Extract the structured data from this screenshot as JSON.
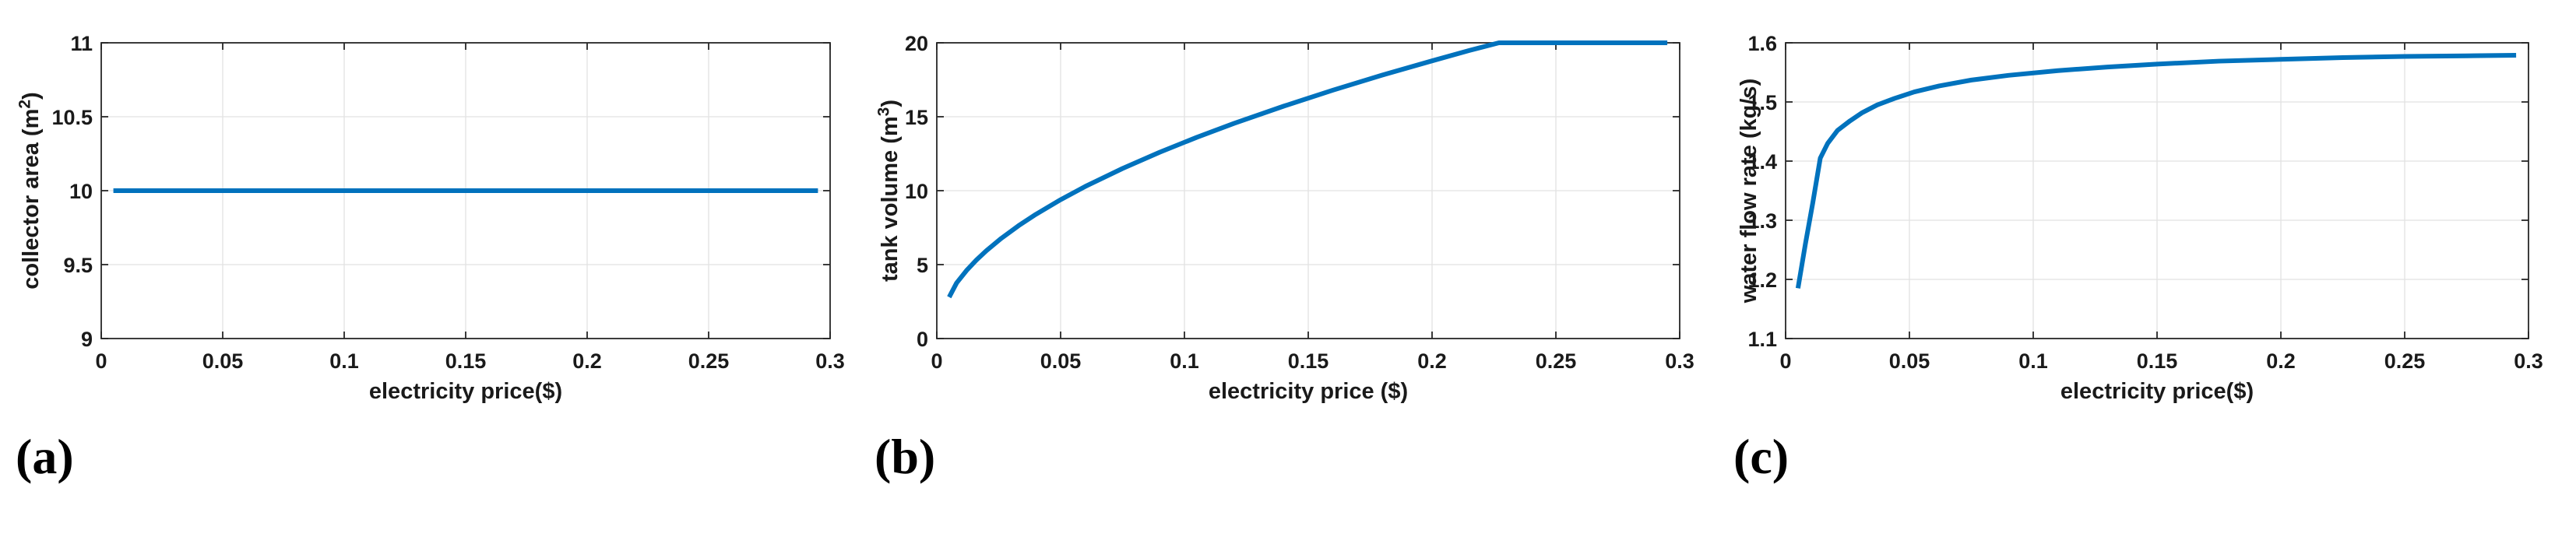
{
  "figure": {
    "background": "#ffffff",
    "line_color": "#0072BD",
    "grid_color": "#e2e2e2",
    "axis_color": "#262626",
    "text_color": "#1a1a1a"
  },
  "chart_data": [
    {
      "type": "line",
      "panel_label": "(a)",
      "xlabel": "electricity price($)",
      "ylabel": "collector area (m²)",
      "ylabel_prefix": "collector area (m",
      "ylabel_sup": "2",
      "ylabel_suffix": ")",
      "xlim": [
        0,
        0.3
      ],
      "ylim": [
        9,
        11
      ],
      "xticks": [
        0,
        0.05,
        0.1,
        0.15,
        0.2,
        0.25,
        0.3
      ],
      "xtick_labels": [
        "0",
        "0.05",
        "0.1",
        "0.15",
        "0.2",
        "0.25",
        "0.3"
      ],
      "yticks": [
        9,
        9.5,
        10,
        10.5,
        11
      ],
      "ytick_labels": [
        "9",
        "9.5",
        "10",
        "10.5",
        "11"
      ],
      "grid": true,
      "legend": null,
      "series": [
        {
          "name": "collector area",
          "x": [
            0.005,
            0.295
          ],
          "y": [
            10,
            10
          ]
        }
      ]
    },
    {
      "type": "line",
      "panel_label": "(b)",
      "xlabel": "electricity price ($)",
      "ylabel": "tank volume (m³)",
      "ylabel_prefix": "tank volume (m",
      "ylabel_sup": "3",
      "ylabel_suffix": ")",
      "xlim": [
        0,
        0.3
      ],
      "ylim": [
        0,
        20
      ],
      "xticks": [
        0,
        0.05,
        0.1,
        0.15,
        0.2,
        0.25,
        0.3
      ],
      "xtick_labels": [
        "0",
        "0.05",
        "0.1",
        "0.15",
        "0.2",
        "0.25",
        "0.3"
      ],
      "yticks": [
        0,
        5,
        10,
        15,
        20
      ],
      "ytick_labels": [
        "0",
        "5",
        "10",
        "15",
        "20"
      ],
      "grid": true,
      "legend": null,
      "series": [
        {
          "name": "tank volume",
          "x": [
            0.005,
            0.008,
            0.012,
            0.016,
            0.02,
            0.026,
            0.033,
            0.04,
            0.05,
            0.06,
            0.075,
            0.09,
            0.105,
            0.12,
            0.14,
            0.16,
            0.18,
            0.2,
            0.215,
            0.227,
            0.24,
            0.26,
            0.28,
            0.295
          ],
          "y": [
            2.8,
            3.76,
            4.6,
            5.31,
            5.94,
            6.77,
            7.63,
            8.4,
            9.39,
            10.29,
            11.5,
            12.6,
            13.61,
            14.55,
            15.71,
            16.8,
            17.82,
            18.78,
            19.48,
            20,
            20,
            20,
            20,
            20
          ]
        }
      ]
    },
    {
      "type": "line",
      "panel_label": "(c)",
      "xlabel": "electricity price($)",
      "ylabel": "water flow rate (kg/s)",
      "ylabel_prefix": "water flow rate (kg/s)",
      "ylabel_sup": "",
      "ylabel_suffix": "",
      "xlim": [
        0,
        0.3
      ],
      "ylim": [
        1.1,
        1.6
      ],
      "xticks": [
        0,
        0.05,
        0.1,
        0.15,
        0.2,
        0.25,
        0.3
      ],
      "xtick_labels": [
        "0",
        "0.05",
        "0.1",
        "0.15",
        "0.2",
        "0.25",
        "0.3"
      ],
      "yticks": [
        1.1,
        1.2,
        1.3,
        1.4,
        1.5,
        1.6
      ],
      "ytick_labels": [
        "1.1",
        "1.2",
        "1.3",
        "1.4",
        "1.5",
        "1.6"
      ],
      "grid": true,
      "legend": null,
      "series": [
        {
          "name": "water flow rate",
          "x": [
            0.005,
            0.008,
            0.011,
            0.014,
            0.017,
            0.021,
            0.026,
            0.031,
            0.037,
            0.044,
            0.052,
            0.062,
            0.075,
            0.09,
            0.11,
            0.13,
            0.15,
            0.175,
            0.2,
            0.225,
            0.25,
            0.275,
            0.295
          ],
          "y": [
            1.185,
            1.26,
            1.33,
            1.405,
            1.43,
            1.452,
            1.468,
            1.482,
            1.495,
            1.506,
            1.517,
            1.527,
            1.537,
            1.545,
            1.553,
            1.559,
            1.564,
            1.569,
            1.572,
            1.575,
            1.577,
            1.578,
            1.579
          ]
        }
      ]
    }
  ]
}
